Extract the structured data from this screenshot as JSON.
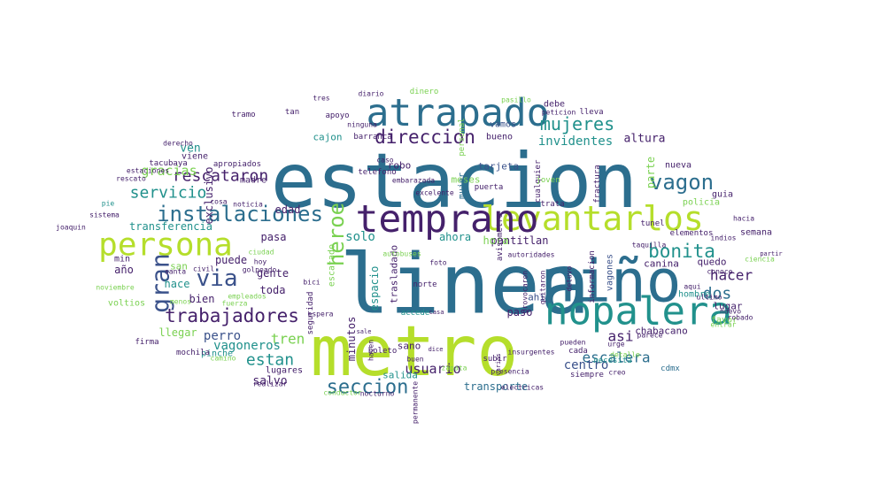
{
  "palette": {
    "dark_purple": "#45216b",
    "indigo": "#3b528b",
    "steel_blue": "#2c6e8e",
    "teal": "#21918c",
    "green": "#35b779",
    "light_green": "#7ad151",
    "lime": "#b5de2b"
  },
  "words": [
    {
      "text": "estacion",
      "color": "steel_blue",
      "rotate": 0
    },
    {
      "text": "linea",
      "color": "steel_blue",
      "rotate": 0
    },
    {
      "text": "metro",
      "color": "lime",
      "rotate": 0
    },
    {
      "text": "niño",
      "color": "steel_blue",
      "rotate": 0
    },
    {
      "text": "nopalera",
      "color": "teal",
      "rotate": 0
    },
    {
      "text": "atrapado",
      "color": "steel_blue",
      "rotate": 0
    },
    {
      "text": "levantarlos",
      "color": "lime",
      "rotate": 0
    },
    {
      "text": "temprano",
      "color": "dark_purple",
      "rotate": 0
    },
    {
      "text": "persona",
      "color": "lime",
      "rotate": 0
    },
    {
      "text": "instalaciones",
      "color": "steel_blue",
      "rotate": 0
    },
    {
      "text": "trabajadores",
      "color": "dark_purple",
      "rotate": 0
    },
    {
      "text": "seccion",
      "color": "steel_blue",
      "rotate": 0
    },
    {
      "text": "bonita",
      "color": "teal",
      "rotate": 0
    },
    {
      "text": "vagon",
      "color": "steel_blue",
      "rotate": 0
    },
    {
      "text": "gran",
      "color": "indigo",
      "rotate": 90
    },
    {
      "text": "via",
      "color": "indigo",
      "rotate": 0
    },
    {
      "text": "direccion",
      "color": "dark_purple",
      "rotate": 0
    },
    {
      "text": "mujeres",
      "color": "teal",
      "rotate": 0
    },
    {
      "text": "rescataron",
      "color": "dark_purple",
      "rotate": 0
    },
    {
      "text": "servicio",
      "color": "teal",
      "rotate": 0
    },
    {
      "text": "usuario",
      "color": "dark_purple",
      "rotate": 0
    },
    {
      "text": "estan",
      "color": "teal",
      "rotate": 0
    },
    {
      "text": "heroe",
      "color": "light_green",
      "rotate": 90
    },
    {
      "text": "gracias",
      "color": "light_green",
      "rotate": 0
    },
    {
      "text": "invidentes",
      "color": "teal",
      "rotate": 0
    },
    {
      "text": "dos",
      "color": "steel_blue",
      "rotate": 0
    },
    {
      "text": "hacer",
      "color": "dark_purple",
      "rotate": 0
    },
    {
      "text": "escalera",
      "color": "steel_blue",
      "rotate": 0
    },
    {
      "text": "tren",
      "color": "light_green",
      "rotate": 0
    },
    {
      "text": "perro",
      "color": "indigo",
      "rotate": 0
    },
    {
      "text": "llegar",
      "color": "light_green",
      "rotate": 0
    },
    {
      "text": "asi",
      "color": "dark_purple",
      "rotate": 0
    },
    {
      "text": "solo",
      "color": "teal",
      "rotate": 0
    },
    {
      "text": "pantitlan",
      "color": "dark_purple",
      "rotate": 0
    },
    {
      "text": "hora",
      "color": "light_green",
      "rotate": 0
    },
    {
      "text": "ahora",
      "color": "teal",
      "rotate": 0
    },
    {
      "text": "altura",
      "color": "dark_purple",
      "rotate": 0
    },
    {
      "text": "tarjeta",
      "color": "indigo",
      "rotate": 0
    },
    {
      "text": "transferencia",
      "color": "teal",
      "rotate": 0
    },
    {
      "text": "toda",
      "color": "dark_purple",
      "rotate": 0
    },
    {
      "text": "bien",
      "color": "dark_purple",
      "rotate": 0
    },
    {
      "text": "gente",
      "color": "dark_purple",
      "rotate": 0
    },
    {
      "text": "edad",
      "color": "dark_purple",
      "rotate": 0
    },
    {
      "text": "pasa",
      "color": "dark_purple",
      "rotate": 0
    },
    {
      "text": "puede",
      "color": "dark_purple",
      "rotate": 0
    },
    {
      "text": "vagoneros",
      "color": "teal",
      "rotate": 0
    },
    {
      "text": "centro",
      "color": "indigo",
      "rotate": 0
    },
    {
      "text": "salvo",
      "color": "dark_purple",
      "rotate": 0
    },
    {
      "text": "salida",
      "color": "teal",
      "rotate": 0
    },
    {
      "text": "sano",
      "color": "dark_purple",
      "rotate": 0
    },
    {
      "text": "paso",
      "color": "dark_purple",
      "rotate": 0
    },
    {
      "text": "chabacano",
      "color": "dark_purple",
      "rotate": 0
    },
    {
      "text": "canina",
      "color": "dark_purple",
      "rotate": 0
    },
    {
      "text": "quedo",
      "color": "dark_purple",
      "rotate": 0
    },
    {
      "text": "lugar",
      "color": "dark_purple",
      "rotate": 0
    },
    {
      "text": "favor",
      "color": "light_green",
      "rotate": 0
    },
    {
      "text": "hombre",
      "color": "teal",
      "rotate": 0
    },
    {
      "text": "policia",
      "color": "light_green",
      "rotate": 0
    },
    {
      "text": "guia",
      "color": "dark_purple",
      "rotate": 0
    },
    {
      "text": "semana",
      "color": "dark_purple",
      "rotate": 0
    },
    {
      "text": "ven",
      "color": "teal",
      "rotate": 0
    },
    {
      "text": "año",
      "color": "dark_purple",
      "rotate": 0
    },
    {
      "text": "san",
      "color": "light_green",
      "rotate": 0
    },
    {
      "text": "hace",
      "color": "teal",
      "rotate": 0
    },
    {
      "text": "min",
      "color": "dark_purple",
      "rotate": 0
    },
    {
      "text": "madre",
      "color": "dark_purple",
      "rotate": 0
    },
    {
      "text": "viene",
      "color": "dark_purple",
      "rotate": 0
    },
    {
      "text": "exclusivo",
      "color": "dark_purple",
      "rotate": 90
    },
    {
      "text": "tacubaya",
      "color": "dark_purple",
      "rotate": 0
    },
    {
      "text": "apropiados",
      "color": "dark_purple",
      "rotate": 0
    },
    {
      "text": "cajon",
      "color": "teal",
      "rotate": 0
    },
    {
      "text": "ninguna",
      "color": "dark_purple",
      "rotate": 0
    },
    {
      "text": "robo",
      "color": "dark_purple",
      "rotate": 0
    },
    {
      "text": "bueno",
      "color": "dark_purple",
      "rotate": 0
    },
    {
      "text": "vamos",
      "color": "indigo",
      "rotate": 0
    },
    {
      "text": "meses",
      "color": "light_green",
      "rotate": 0
    },
    {
      "text": "minutos",
      "color": "dark_purple",
      "rotate": 90
    },
    {
      "text": "trasladado",
      "color": "dark_purple",
      "rotate": 90
    },
    {
      "text": "escatado",
      "color": "light_green",
      "rotate": 90
    },
    {
      "text": "espacio",
      "color": "teal",
      "rotate": 90
    },
    {
      "text": "seguridad",
      "color": "dark_purple",
      "rotate": 90
    },
    {
      "text": "accede",
      "color": "teal",
      "rotate": 0
    },
    {
      "text": "norte",
      "color": "dark_purple",
      "rotate": 0
    },
    {
      "text": "vagones",
      "color": "indigo",
      "rotate": 90
    },
    {
      "text": "informacion",
      "color": "dark_purple",
      "rotate": 90
    },
    {
      "text": "parte",
      "color": "light_green",
      "rotate": 90
    },
    {
      "text": "tunel",
      "color": "dark_purple",
      "rotate": 0
    },
    {
      "text": "nueva",
      "color": "dark_purple",
      "rotate": 0
    },
    {
      "text": "elementos",
      "color": "dark_purple",
      "rotate": 0
    },
    {
      "text": "ahi",
      "color": "indigo",
      "rotate": 0
    },
    {
      "text": "debe",
      "color": "dark_purple",
      "rotate": 0
    },
    {
      "text": "cada",
      "color": "dark_purple",
      "rotate": 0
    },
    {
      "text": "siempre",
      "color": "dark_purple",
      "rotate": 0
    },
    {
      "text": "transporte",
      "color": "steel_blue",
      "rotate": 0
    },
    {
      "text": "subir",
      "color": "dark_purple",
      "rotate": 0
    },
    {
      "text": "boleto",
      "color": "dark_purple",
      "rotate": 0
    },
    {
      "text": "lugares",
      "color": "dark_purple",
      "rotate": 0
    },
    {
      "text": "pinche",
      "color": "teal",
      "rotate": 0
    },
    {
      "text": "firma",
      "color": "dark_purple",
      "rotate": 0
    },
    {
      "text": "mochila",
      "color": "dark_purple",
      "rotate": 0
    },
    {
      "text": "necesita",
      "color": "teal",
      "rotate": 0
    },
    {
      "text": "electricas",
      "color": "dark_purple",
      "rotate": 0
    },
    {
      "text": "pueden",
      "color": "dark_purple",
      "rotate": 0
    },
    {
      "text": "cdmx",
      "color": "steel_blue",
      "rotate": 0
    },
    {
      "text": "voltios",
      "color": "light_green",
      "rotate": 0
    },
    {
      "text": "noviembre",
      "color": "light_green",
      "rotate": 0
    },
    {
      "text": "dinero",
      "color": "light_green",
      "rotate": 0
    },
    {
      "text": "tan",
      "color": "dark_purple",
      "rotate": 0
    },
    {
      "text": "tramo",
      "color": "dark_purple",
      "rotate": 0
    },
    {
      "text": "apoyo",
      "color": "dark_purple",
      "rotate": 0
    },
    {
      "text": "tres",
      "color": "dark_purple",
      "rotate": 0
    },
    {
      "text": "diario",
      "color": "dark_purple",
      "rotate": 0
    },
    {
      "text": "pasillo",
      "color": "light_green",
      "rotate": 0
    },
    {
      "text": "lleva",
      "color": "dark_purple",
      "rotate": 0
    },
    {
      "text": "peticion",
      "color": "dark_purple",
      "rotate": 0
    },
    {
      "text": "barranca",
      "color": "dark_purple",
      "rotate": 0
    },
    {
      "text": "personal",
      "color": "light_green",
      "rotate": 90
    },
    {
      "text": "mujer",
      "color": "steel_blue",
      "rotate": 90
    },
    {
      "text": "cualquier",
      "color": "dark_purple",
      "rotate": 90
    },
    {
      "text": "fractura",
      "color": "dark_purple",
      "rotate": 90
    },
    {
      "text": "joven",
      "color": "light_green",
      "rotate": 0
    },
    {
      "text": "puerta",
      "color": "dark_purple",
      "rotate": 0
    },
    {
      "text": "caso",
      "color": "dark_purple",
      "rotate": 0
    },
    {
      "text": "telefono",
      "color": "dark_purple",
      "rotate": 0
    },
    {
      "text": "trata",
      "color": "dark_purple",
      "rotate": 0
    },
    {
      "text": "avisometro",
      "color": "dark_purple",
      "rotate": 90
    },
    {
      "text": "excelente",
      "color": "dark_purple",
      "rotate": 0
    },
    {
      "text": "taquilla",
      "color": "dark_purple",
      "rotate": 0
    },
    {
      "text": "indios",
      "color": "dark_purple",
      "rotate": 0
    },
    {
      "text": "ciencia",
      "color": "light_green",
      "rotate": 0
    },
    {
      "text": "partir",
      "color": "dark_purple",
      "rotate": 0
    },
    {
      "text": "conoce",
      "color": "dark_purple",
      "rotate": 0
    },
    {
      "text": "aqui",
      "color": "dark_purple",
      "rotate": 0
    },
    {
      "text": "ultimo",
      "color": "dark_purple",
      "rotate": 0
    },
    {
      "text": "nuevo",
      "color": "dark_purple",
      "rotate": 0
    },
    {
      "text": "robado",
      "color": "dark_purple",
      "rotate": 0
    },
    {
      "text": "entrar",
      "color": "light_green",
      "rotate": 0
    },
    {
      "text": "parece",
      "color": "dark_purple",
      "rotate": 0
    },
    {
      "text": "urge",
      "color": "dark_purple",
      "rotate": 0
    },
    {
      "text": "detalle",
      "color": "light_green",
      "rotate": 0
    },
    {
      "text": "creo",
      "color": "dark_purple",
      "rotate": 0
    },
    {
      "text": "presencia",
      "color": "dark_purple",
      "rotate": 0
    },
    {
      "text": "insurgentes",
      "color": "dark_purple",
      "rotate": 0
    },
    {
      "text": "zapata",
      "color": "light_green",
      "rotate": 0
    },
    {
      "text": "conductor",
      "color": "light_green",
      "rotate": 0
    },
    {
      "text": "dice",
      "color": "dark_purple",
      "rotate": 0
    },
    {
      "text": "espera",
      "color": "dark_purple",
      "rotate": 0
    },
    {
      "text": "casa",
      "color": "dark_purple",
      "rotate": 0
    },
    {
      "text": "autobuses",
      "color": "light_green",
      "rotate": 0
    },
    {
      "text": "autoridades",
      "color": "dark_purple",
      "rotate": 0
    },
    {
      "text": "foto",
      "color": "dark_purple",
      "rotate": 0
    },
    {
      "text": "provocaron",
      "color": "dark_purple",
      "rotate": 90
    },
    {
      "text": "quitaron",
      "color": "dark_purple",
      "rotate": 90
    },
    {
      "text": "detuvo",
      "color": "dark_purple",
      "rotate": 90
    },
    {
      "text": "hacen",
      "color": "dark_purple",
      "rotate": 90
    },
    {
      "text": "bici",
      "color": "dark_purple",
      "rotate": 0
    },
    {
      "text": "ciudad",
      "color": "light_green",
      "rotate": 0
    },
    {
      "text": "hoy",
      "color": "dark_purple",
      "rotate": 0
    },
    {
      "text": "golpeado",
      "color": "dark_purple",
      "rotate": 0
    },
    {
      "text": "empleados",
      "color": "light_green",
      "rotate": 0
    },
    {
      "text": "fuerza",
      "color": "light_green",
      "rotate": 0
    },
    {
      "text": "santa",
      "color": "dark_purple",
      "rotate": 0
    },
    {
      "text": "menos",
      "color": "light_green",
      "rotate": 0
    },
    {
      "text": "pie",
      "color": "teal",
      "rotate": 0
    },
    {
      "text": "sistema",
      "color": "dark_purple",
      "rotate": 0
    },
    {
      "text": "joaquin",
      "color": "dark_purple",
      "rotate": 0
    },
    {
      "text": "derecho",
      "color": "dark_purple",
      "rotate": 0
    },
    {
      "text": "estaciones",
      "color": "dark_purple",
      "rotate": 0
    },
    {
      "text": "rescato",
      "color": "dark_purple",
      "rotate": 0
    },
    {
      "text": "camino",
      "color": "light_green",
      "rotate": 0
    },
    {
      "text": "realizar",
      "color": "dark_purple",
      "rotate": 0
    },
    {
      "text": "civil",
      "color": "dark_purple",
      "rotate": 0
    },
    {
      "text": "cosa",
      "color": "dark_purple",
      "rotate": 0
    },
    {
      "text": "noticia",
      "color": "dark_purple",
      "rotate": 0
    },
    {
      "text": "hacia",
      "color": "dark_purple",
      "rotate": 0
    },
    {
      "text": "permanente",
      "color": "dark_purple",
      "rotate": 90
    },
    {
      "text": "varias",
      "color": "dark_purple",
      "rotate": 90
    },
    {
      "text": "buen",
      "color": "dark_purple",
      "rotate": 0
    },
    {
      "text": "sale",
      "color": "dark_purple",
      "rotate": 0
    },
    {
      "text": "nocturno",
      "color": "dark_purple",
      "rotate": 0
    },
    {
      "text": "embarazada",
      "color": "dark_purple",
      "rotate": 0
    }
  ]
}
